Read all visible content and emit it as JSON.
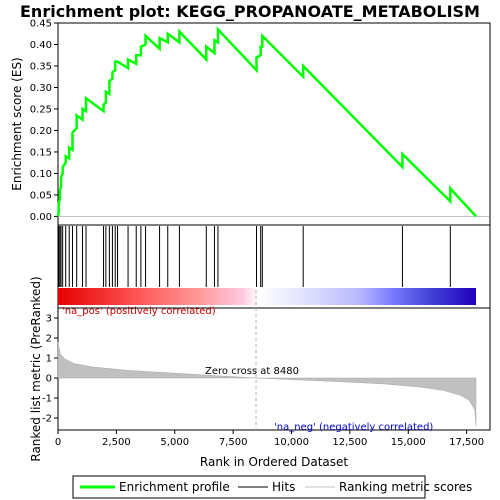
{
  "chart_data": {
    "type": "line",
    "title": "Enrichment plot: KEGG_PROPANOATE_METABOLISM",
    "xlabel": "Rank in Ordered Dataset",
    "xlim": [
      0,
      18500
    ],
    "x_ticks": [
      0,
      2500,
      5000,
      7500,
      10000,
      12500,
      15000,
      17500
    ],
    "x_tick_labels": [
      "0",
      "2,500",
      "5,000",
      "7,500",
      "10,000",
      "12,500",
      "15,000",
      "17,500"
    ],
    "top_panel": {
      "ylabel": "Enrichment score (ES)",
      "ylim": [
        -0.02,
        0.45
      ],
      "y_ticks": [
        0.0,
        0.05,
        0.1,
        0.15,
        0.2,
        0.25,
        0.3,
        0.35,
        0.4,
        0.45
      ],
      "y_tick_labels": [
        "0.00",
        "0.05",
        "0.10",
        "0.15",
        "0.20",
        "0.25",
        "0.30",
        "0.35",
        "0.40",
        "0.45"
      ],
      "series": [
        {
          "name": "Enrichment profile",
          "color": "#00ff00",
          "x": [
            0,
            30,
            30,
            80,
            80,
            130,
            130,
            200,
            200,
            330,
            330,
            480,
            480,
            620,
            620,
            800,
            800,
            1050,
            1050,
            1200,
            1200,
            1950,
            1950,
            2050,
            2050,
            2200,
            2200,
            2330,
            2330,
            2450,
            2450,
            2550,
            2550,
            3000,
            3000,
            3350,
            3350,
            3550,
            3550,
            3750,
            3750,
            4350,
            4350,
            4700,
            4700,
            5200,
            5200,
            6350,
            6350,
            6700,
            6700,
            6850,
            6850,
            8500,
            8500,
            8680,
            8680,
            8750,
            8750,
            10500,
            10500,
            14750,
            14750,
            16800,
            16800,
            17900
          ],
          "y": [
            0.0,
            0.01,
            0.03,
            0.04,
            0.06,
            0.07,
            0.09,
            0.1,
            0.115,
            0.125,
            0.14,
            0.135,
            0.16,
            0.155,
            0.195,
            0.205,
            0.235,
            0.225,
            0.25,
            0.245,
            0.275,
            0.245,
            0.26,
            0.265,
            0.29,
            0.285,
            0.315,
            0.32,
            0.335,
            0.34,
            0.36,
            0.36,
            0.36,
            0.345,
            0.365,
            0.355,
            0.375,
            0.375,
            0.395,
            0.4,
            0.42,
            0.39,
            0.415,
            0.405,
            0.425,
            0.405,
            0.43,
            0.365,
            0.395,
            0.38,
            0.41,
            0.405,
            0.435,
            0.34,
            0.37,
            0.375,
            0.395,
            0.395,
            0.42,
            0.325,
            0.35,
            0.115,
            0.145,
            0.035,
            0.065,
            0.0
          ]
        }
      ]
    },
    "hits": [
      30,
      80,
      130,
      200,
      330,
      480,
      620,
      800,
      1050,
      1200,
      1950,
      2050,
      2200,
      2330,
      2450,
      2550,
      3000,
      3350,
      3550,
      3750,
      4350,
      4700,
      5200,
      6350,
      6700,
      6850,
      8500,
      8680,
      8750,
      10500,
      14750,
      16800
    ],
    "bottom_panel": {
      "ylabel": "Ranked list metric (PreRanked)",
      "ylim": [
        -2.6,
        3.5
      ],
      "y_ticks": [
        -2,
        -1,
        0,
        1,
        2,
        3
      ],
      "y_tick_labels": [
        "-2",
        "-1",
        "0",
        "1",
        "2",
        "3"
      ],
      "series": [
        {
          "name": "Ranking metric scores",
          "color": "#c0c0c0",
          "x": [
            0,
            100,
            300,
            700,
            1500,
            3000,
            5000,
            7000,
            8480,
            10000,
            12000,
            14000,
            15500,
            16500,
            17200,
            17600,
            17850,
            17900
          ],
          "y": [
            1.8,
            1.2,
            0.95,
            0.72,
            0.55,
            0.38,
            0.24,
            0.1,
            0.0,
            -0.08,
            -0.18,
            -0.3,
            -0.45,
            -0.62,
            -0.85,
            -1.1,
            -1.6,
            -2.4
          ]
        }
      ],
      "zero_cross_label": "Zero cross at 8480",
      "zero_cross_x": 8480,
      "pos_label": "'na_pos' (positively correlated)",
      "neg_label": "'na_neg' (negatively correlated)"
    },
    "colors": {
      "pos_label": "#cc0000",
      "neg_label": "#0000cc",
      "hit_line": "#000000",
      "zero_line": "#b0b0b0"
    },
    "legend": {
      "placement": "bottom",
      "entries": [
        {
          "label": "Enrichment profile",
          "color": "#00ff00",
          "style": "thick-line"
        },
        {
          "label": "Hits",
          "color": "#000000",
          "style": "line"
        },
        {
          "label": "Ranking metric scores",
          "color": "#c0c0c0",
          "style": "line"
        }
      ]
    }
  }
}
